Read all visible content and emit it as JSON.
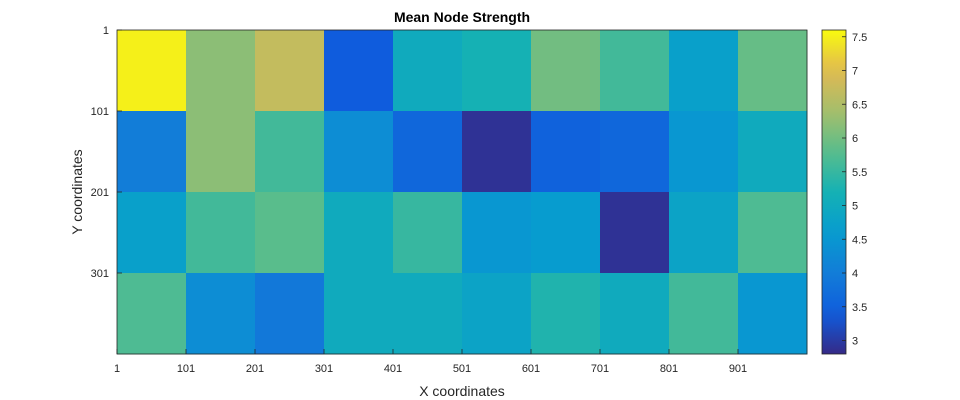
{
  "chart_data": {
    "type": "heatmap",
    "title": "Mean Node Strength",
    "xlabel": "X coordinates",
    "ylabel": "Y coordinates",
    "x_tick_labels": [
      "1",
      "101",
      "201",
      "301",
      "401",
      "501",
      "601",
      "701",
      "801",
      "901"
    ],
    "y_tick_labels": [
      "1",
      "101",
      "201",
      "301"
    ],
    "xlim": [
      1,
      1001
    ],
    "ylim": [
      1,
      401
    ],
    "colorbar": {
      "colormap": "parula",
      "range": [
        2.8,
        7.6
      ],
      "ticks": [
        "7.5",
        "7",
        "6.5",
        "6",
        "5.5",
        "5",
        "4.5",
        "4",
        "3.5",
        "3"
      ]
    },
    "values": [
      [
        7.5,
        6.2,
        6.7,
        3.4,
        5.0,
        5.2,
        6.0,
        5.6,
        4.7,
        5.9
      ],
      [
        4.0,
        6.2,
        5.6,
        4.3,
        3.6,
        2.9,
        3.5,
        3.6,
        4.5,
        5.0
      ],
      [
        4.7,
        5.6,
        5.8,
        5.0,
        5.5,
        4.5,
        4.6,
        2.9,
        4.8,
        5.7
      ],
      [
        5.7,
        4.3,
        3.9,
        5.0,
        5.0,
        4.8,
        5.3,
        5.0,
        5.6,
        4.5
      ]
    ]
  }
}
